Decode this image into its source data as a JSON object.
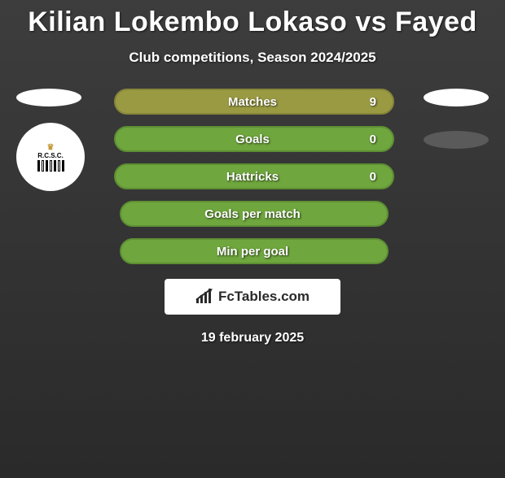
{
  "title": "Kilian Lokembo Lokaso vs Fayed",
  "subtitle": "Club competitions, Season 2024/2025",
  "date": "19 february 2025",
  "footer_brand": "FcTables.com",
  "colors": {
    "bar_green": "#6fa63e",
    "bar_green_border": "#5d8f33",
    "bar_olive": "#9a9a43",
    "bar_olive_border": "#86863a",
    "background_top": "#3d3d3d",
    "background_bottom": "#2a2a2a",
    "text": "#ffffff",
    "badge_bg": "#ffffff",
    "badge_text": "#2a2a2a"
  },
  "left_club": "R.C.S.C.",
  "bars": [
    {
      "label": "Matches",
      "value": "9",
      "kind": "olive",
      "fill": 1.0
    },
    {
      "label": "Goals",
      "value": "0",
      "kind": "green",
      "fill": 1.0
    },
    {
      "label": "Hattricks",
      "value": "0",
      "kind": "green",
      "fill": 1.0
    },
    {
      "label": "Goals per match",
      "value": "",
      "kind": "green",
      "fill": 0.96
    },
    {
      "label": "Min per goal",
      "value": "",
      "kind": "green",
      "fill": 0.96
    }
  ]
}
